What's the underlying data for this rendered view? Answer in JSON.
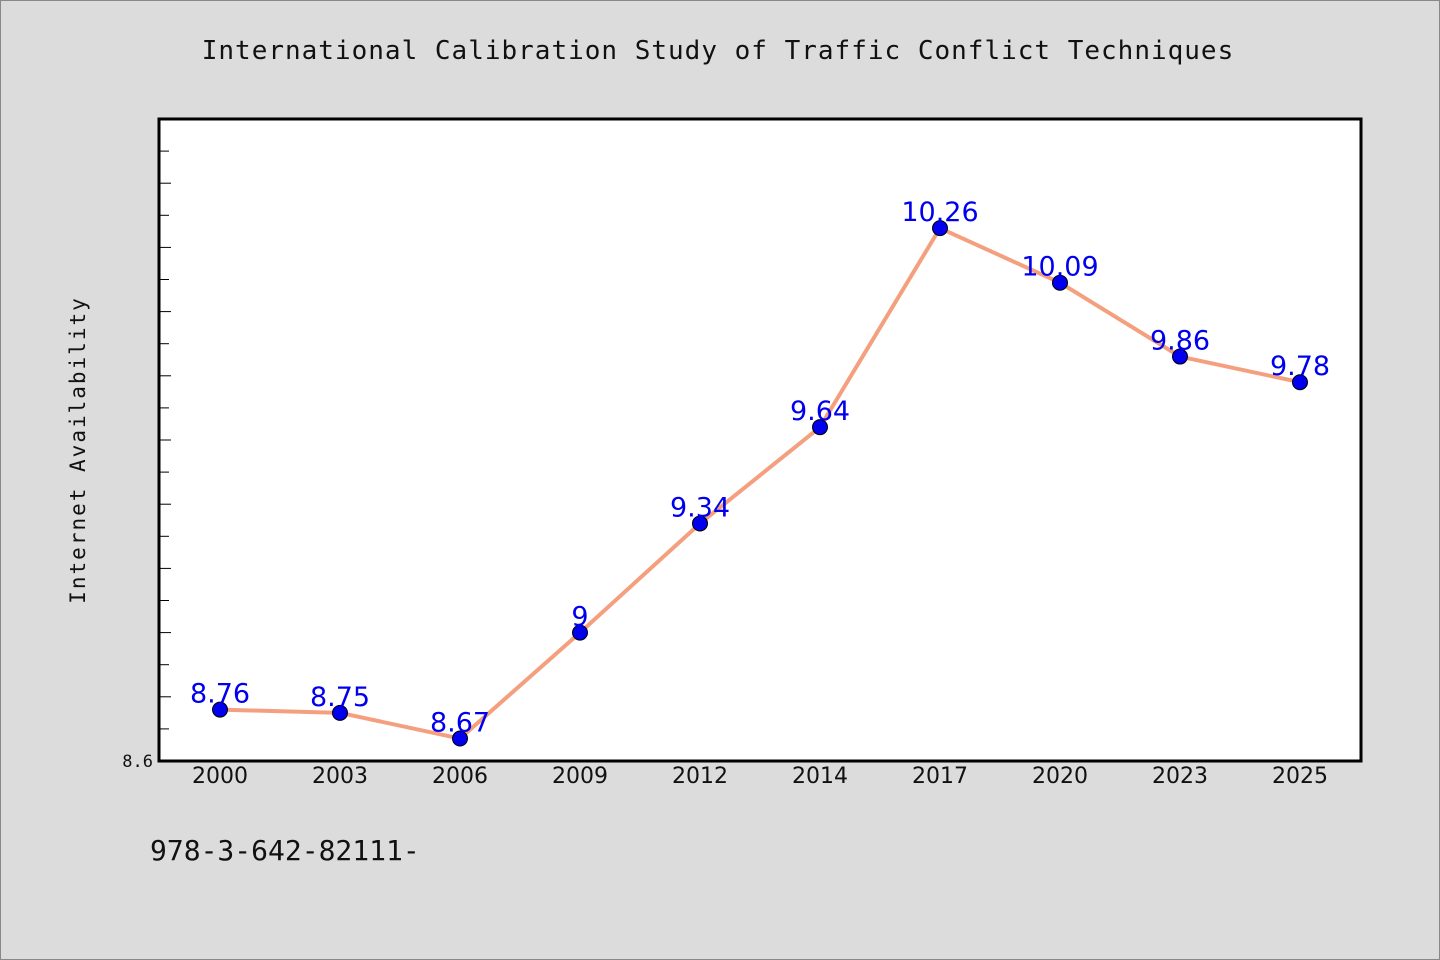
{
  "chart_data": {
    "type": "line",
    "title": "International Calibration Study of Traffic Conflict Techniques",
    "xlabel": "",
    "ylabel": "Internet Availability",
    "categories": [
      "2000",
      "2003",
      "2006",
      "2009",
      "2012",
      "2014",
      "2017",
      "2020",
      "2023",
      "2025"
    ],
    "series": [
      {
        "values": [
          8.76,
          8.75,
          8.67,
          9.0,
          9.34,
          9.64,
          10.26,
          10.09,
          9.86,
          9.78
        ]
      }
    ],
    "data_labels": [
      "8.76",
      "8.75",
      "8.67",
      "9",
      "9.34",
      "9.64",
      "10.26",
      "10.09",
      "9.86",
      "9.78"
    ],
    "ylim": [
      8.6,
      10.6
    ],
    "y_tick_label": "8.6",
    "grid": false,
    "line_color": "#f4a07f",
    "marker_color": "#0000ee",
    "label_color": "#0000ee"
  },
  "footnote": "978-3-642-82111-"
}
